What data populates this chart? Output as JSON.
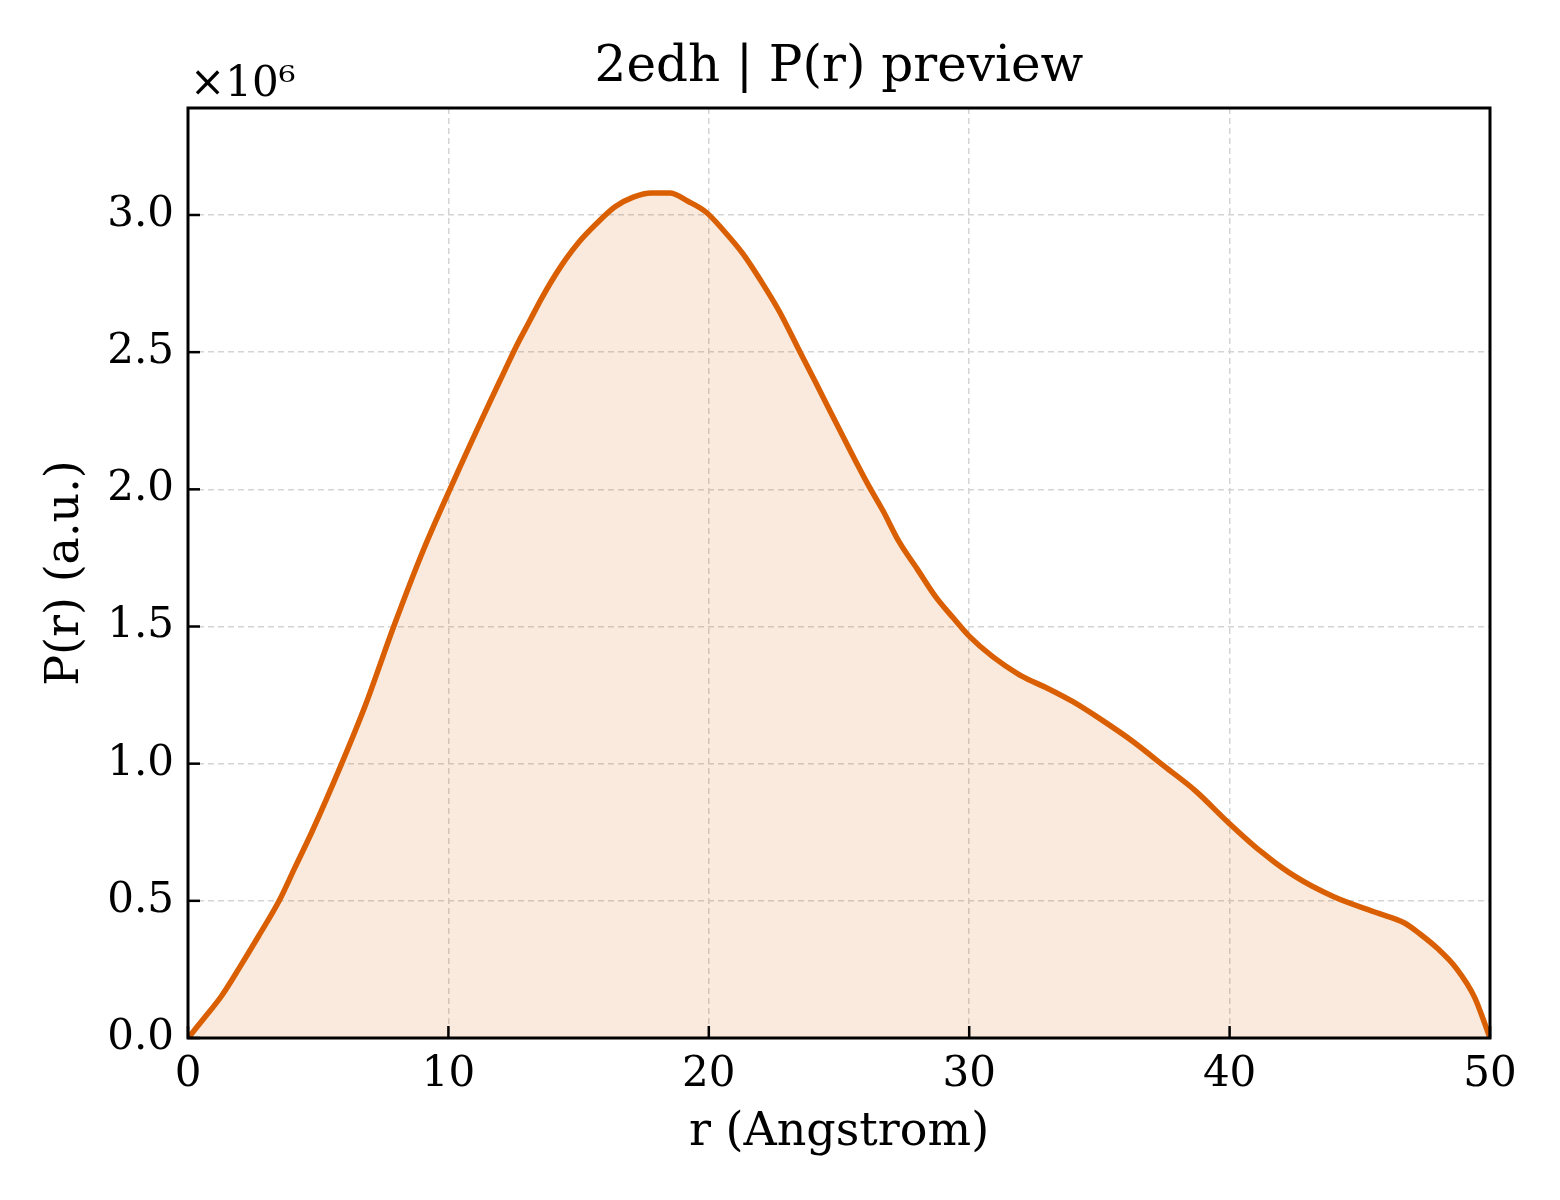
{
  "chart_data": {
    "type": "area",
    "title": "2edh | P(r) preview",
    "xlabel": "r (Angstrom)",
    "ylabel": "P(r) (a.u.)",
    "annotations": [
      "×10⁶"
    ],
    "x": [
      0,
      0.6,
      1.3,
      2.0,
      2.7,
      3.5,
      4.1,
      4.8,
      5.9,
      6.8,
      7.9,
      9.0,
      10.2,
      11.6,
      12.1,
      12.6,
      13.1,
      13.6,
      14.3,
      15.0,
      15.7,
      16.4,
      17.1,
      17.8,
      18.5,
      19.2,
      19.9,
      20.6,
      21.3,
      22.0,
      22.7,
      23.4,
      24.1,
      24.9,
      25.6,
      26.1,
      26.7,
      27.3,
      28.0,
      28.7,
      29.4,
      30.0,
      30.9,
      32.0,
      33.0,
      34.0,
      35.0,
      36.3,
      37.5,
      38.7,
      39.9,
      41.2,
      42.5,
      44.0,
      45.7,
      46.7,
      47.3,
      48.0,
      48.7,
      49.4,
      50
    ],
    "values": [
      0,
      0.07,
      0.155,
      0.26,
      0.37,
      0.5,
      0.62,
      0.76,
      1.0,
      1.21,
      1.5,
      1.77,
      2.03,
      2.32,
      2.42,
      2.52,
      2.61,
      2.7,
      2.81,
      2.9,
      2.97,
      3.03,
      3.065,
      3.08,
      3.08,
      3.05,
      3.01,
      2.94,
      2.86,
      2.76,
      2.65,
      2.52,
      2.39,
      2.24,
      2.11,
      2.02,
      1.92,
      1.81,
      1.71,
      1.61,
      1.53,
      1.465,
      1.39,
      1.32,
      1.275,
      1.225,
      1.165,
      1.08,
      0.99,
      0.9,
      0.79,
      0.68,
      0.59,
      0.515,
      0.455,
      0.42,
      0.38,
      0.325,
      0.255,
      0.15,
      0
    ],
    "color": "#d95f02",
    "xlim": [
      0,
      50
    ],
    "xticks": [
      0,
      10,
      20,
      30,
      40,
      50
    ],
    "ylim": [
      0,
      3.39
    ],
    "yticks": [
      {
        "value": 0,
        "label": "0.0"
      },
      0.5,
      {
        "value": 1,
        "label": "1.0"
      },
      1.5,
      {
        "value": 2,
        "label": "2.0"
      },
      2.5,
      {
        "value": 3,
        "label": "3.0"
      }
    ],
    "grid": true
  }
}
